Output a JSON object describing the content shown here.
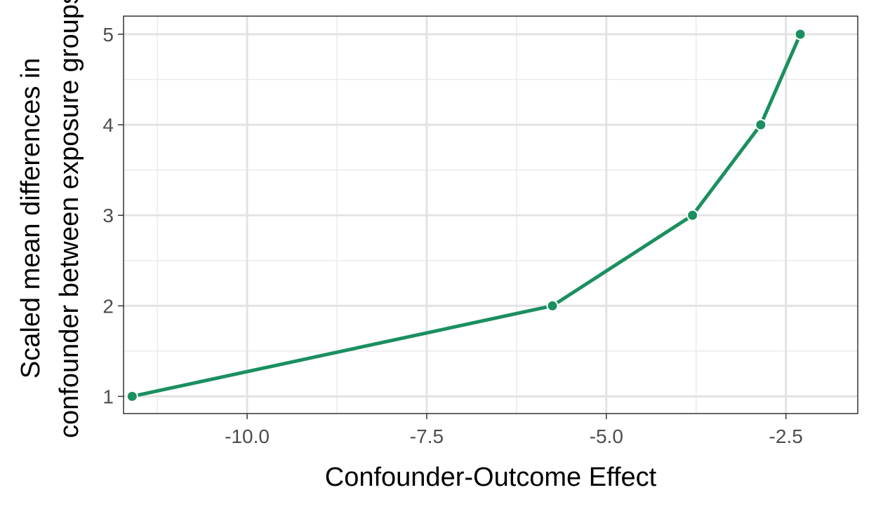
{
  "chart_data": {
    "type": "line",
    "xlabel": "Confounder-Outcome Effect",
    "ylabel_lines": [
      "Scaled mean differences in",
      "confounder between exposure groups"
    ],
    "x_ticks": [
      -10.0,
      -7.5,
      -5.0,
      -2.5
    ],
    "x_tick_labels": [
      "-10.0",
      "-7.5",
      "-5.0",
      "-2.5"
    ],
    "y_ticks": [
      1,
      2,
      3,
      4,
      5
    ],
    "y_tick_labels": [
      "1",
      "2",
      "3",
      "4",
      "5"
    ],
    "xlim": [
      -11.72,
      -1.5
    ],
    "ylim": [
      0.81,
      5.2
    ],
    "grid": true,
    "series": [
      {
        "x": [
          -11.6,
          -5.75,
          -3.8,
          -2.85,
          -2.3
        ],
        "y": [
          1,
          2,
          3,
          4,
          5
        ],
        "color": "#1b8f5f"
      }
    ]
  }
}
